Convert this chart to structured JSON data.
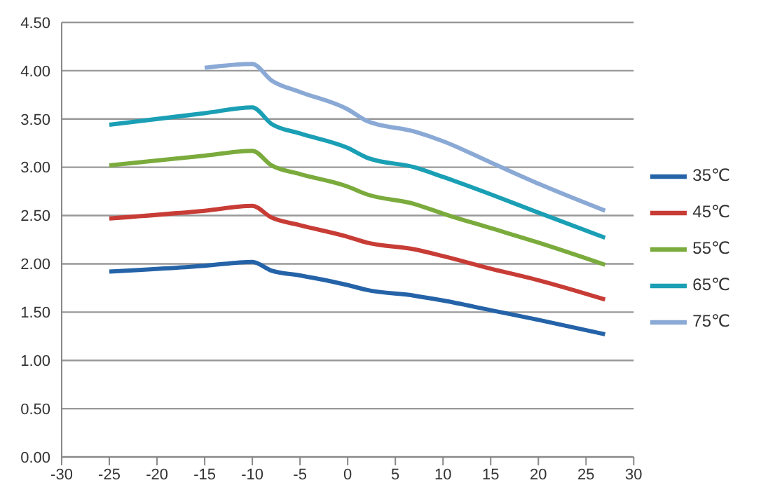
{
  "chart_data": {
    "type": "line",
    "x": [
      -25,
      -15,
      -10,
      -8,
      -5,
      0,
      2,
      7,
      10,
      15,
      20,
      27
    ],
    "series": [
      {
        "name": "35℃",
        "color": "#2563a8",
        "values": [
          1.92,
          1.98,
          2.02,
          1.93,
          1.88,
          1.78,
          1.73,
          1.67,
          1.62,
          1.52,
          1.42,
          1.27
        ]
      },
      {
        "name": "45℃",
        "color": "#c83c36",
        "values": [
          2.47,
          2.55,
          2.6,
          2.48,
          2.4,
          2.28,
          2.22,
          2.15,
          2.08,
          1.95,
          1.83,
          1.63
        ]
      },
      {
        "name": "55℃",
        "color": "#7aab3c",
        "values": [
          3.02,
          3.12,
          3.17,
          3.02,
          2.93,
          2.8,
          2.72,
          2.62,
          2.52,
          2.37,
          2.22,
          1.99
        ]
      },
      {
        "name": "65℃",
        "color": "#1a9fb5",
        "values": [
          3.44,
          3.56,
          3.62,
          3.45,
          3.35,
          3.2,
          3.1,
          3.0,
          2.9,
          2.72,
          2.53,
          2.27
        ]
      },
      {
        "name": "75℃",
        "color": "#8aa9d5",
        "values": [
          null,
          4.03,
          4.07,
          3.9,
          3.78,
          3.6,
          3.48,
          3.37,
          3.27,
          3.05,
          2.83,
          2.55
        ]
      }
    ],
    "xlim": [
      -30,
      30
    ],
    "xticks": [
      -30,
      -25,
      -20,
      -15,
      -10,
      -5,
      0,
      5,
      10,
      15,
      20,
      25,
      30
    ],
    "ylim": [
      0,
      4.5
    ],
    "yticks": [
      {
        "value": 0,
        "label": "0.00"
      },
      {
        "value": 0.5,
        "label": "0.50"
      },
      {
        "value": 1,
        "label": "1.00"
      },
      {
        "value": 1.5,
        "label": "1.50"
      },
      {
        "value": 2,
        "label": "2.00"
      },
      {
        "value": 2.5,
        "label": "2.50"
      },
      {
        "value": 3,
        "label": "3.00"
      },
      {
        "value": 3.5,
        "label": "3.50"
      },
      {
        "value": 4,
        "label": "4.00"
      },
      {
        "value": 4.5,
        "label": "4.50"
      }
    ],
    "grid": "y",
    "legend": "right",
    "marker": "none",
    "line_style": "solid"
  }
}
